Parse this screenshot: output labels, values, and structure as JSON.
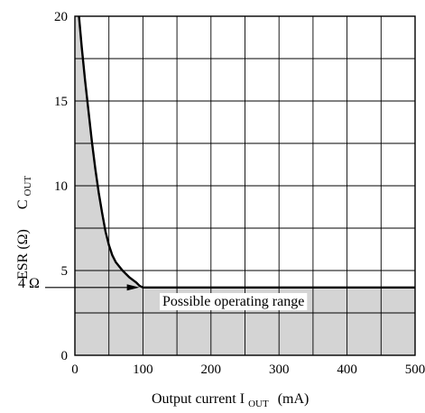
{
  "chart_data": {
    "type": "area",
    "title": "",
    "xlabel": {
      "prefix": "Output current I",
      "sub": "OUT",
      "suffix": "(mA)"
    },
    "ylabel": {
      "main": "ESR (Ω)",
      "c": "C",
      "sub": "OUT"
    },
    "xlim": [
      0,
      500
    ],
    "ylim": [
      0,
      20
    ],
    "x_ticks": [
      "0",
      "100",
      "200",
      "300",
      "400",
      "500"
    ],
    "y_ticks": [
      "0",
      "5",
      "10",
      "15",
      "20"
    ],
    "grid": true,
    "grid_x_step": 50,
    "grid_y_step": 2.5,
    "series": [
      {
        "x": [
          6,
          10,
          15,
          20,
          25,
          30,
          35,
          40,
          45,
          50,
          55,
          60,
          70,
          80,
          90,
          95,
          100,
          500
        ],
        "y": [
          20,
          18.2,
          16.2,
          14.4,
          12.6,
          11.0,
          9.6,
          8.4,
          7.3,
          6.5,
          5.9,
          5.5,
          5.0,
          4.6,
          4.3,
          4.1,
          4.0,
          4.0
        ]
      }
    ],
    "shaded_region": "below curve",
    "shade_color": "#d4d4d4",
    "annotations": {
      "region_label": "Possible operating range",
      "marker_label": "4 Ω",
      "marker_value": 4,
      "arrow_to_x": 95
    }
  }
}
